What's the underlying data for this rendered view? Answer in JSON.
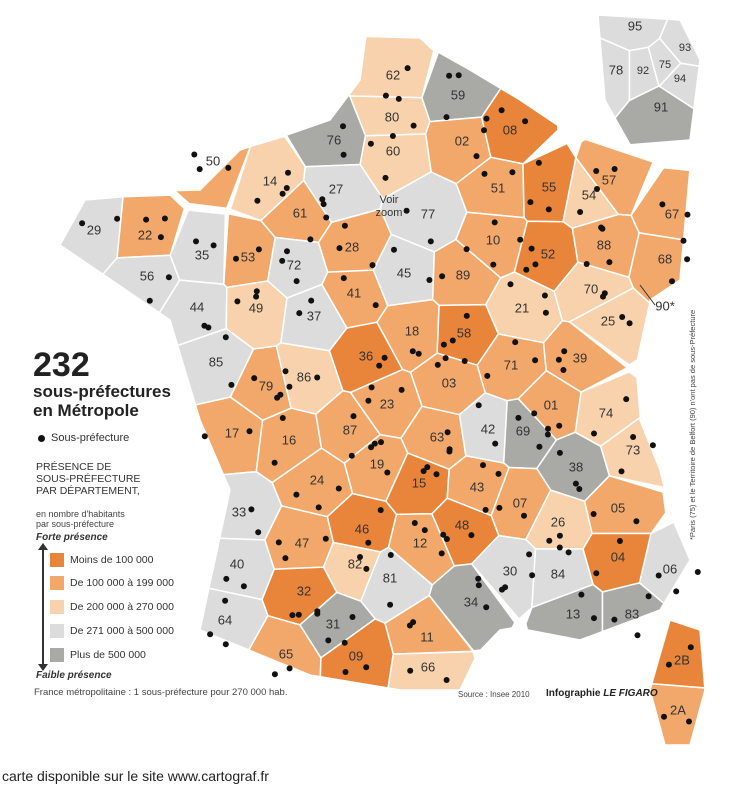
{
  "title": {
    "number": "232",
    "subtitle_line1": "sous-préfectures",
    "subtitle_line2": "en Métropole"
  },
  "dot_legend_label": "Sous-préfecture",
  "legend": {
    "title_lines": [
      "PRÉSENCE DE",
      "SOUS-PRÉFECTURE",
      "PAR DÉPARTEMENT,"
    ],
    "subtitle_lines": [
      "en nombre d'habitants",
      "par sous-préfecture"
    ],
    "strong_label": "Forte présence",
    "weak_label": "Faible présence",
    "items": [
      {
        "label": "Moins de 100 000",
        "color": "#e8853a"
      },
      {
        "label": "De 100 000 à 199 000",
        "color": "#f2a86b"
      },
      {
        "label": "De 200 000 à 270 000",
        "color": "#f8d2ad"
      },
      {
        "label": "De 271 000 à 500 000",
        "color": "#dcdcdc"
      },
      {
        "label": "Plus de 500 000",
        "color": "#a9a9a5"
      }
    ]
  },
  "footnote": "France métropolitaine : 1 sous-préfecture pour 270 000 hab.",
  "source": "Source : Insee 2010",
  "credit_prefix": "Infographie ",
  "credit_paper": "LE FIGARO",
  "side_note": "*Paris (75) et le Territoire de Belfort (90) n'ont pas de sous-Préfecture",
  "zoom_label_line1": "Voir",
  "zoom_label_line2": "zoom",
  "bottom_caption": "carte disponible sur le site www.cartograf.fr",
  "map": {
    "border_color": "#ffffff",
    "dot_color": "#111111",
    "departments": [
      {
        "code": "62",
        "cls": 2
      },
      {
        "code": "59",
        "cls": 4
      },
      {
        "code": "80",
        "cls": 2
      },
      {
        "code": "02",
        "cls": 1
      },
      {
        "code": "08",
        "cls": 0
      },
      {
        "code": "76",
        "cls": 4
      },
      {
        "code": "60",
        "cls": 2
      },
      {
        "code": "50",
        "cls": 1
      },
      {
        "code": "14",
        "cls": 2
      },
      {
        "code": "27",
        "cls": 3
      },
      {
        "code": "77",
        "cls": 3
      },
      {
        "code": "51",
        "cls": 1
      },
      {
        "code": "55",
        "cls": 0
      },
      {
        "code": "54",
        "cls": 2
      },
      {
        "code": "57",
        "cls": 1
      },
      {
        "code": "67",
        "cls": 1
      },
      {
        "code": "29",
        "cls": 3
      },
      {
        "code": "22",
        "cls": 1
      },
      {
        "code": "56",
        "cls": 3
      },
      {
        "code": "35",
        "cls": 3
      },
      {
        "code": "53",
        "cls": 1
      },
      {
        "code": "61",
        "cls": 1
      },
      {
        "code": "72",
        "cls": 3
      },
      {
        "code": "28",
        "cls": 1
      },
      {
        "code": "45",
        "cls": 3
      },
      {
        "code": "10",
        "cls": 1
      },
      {
        "code": "52",
        "cls": 0
      },
      {
        "code": "88",
        "cls": 1
      },
      {
        "code": "68",
        "cls": 1
      },
      {
        "code": "89",
        "cls": 1
      },
      {
        "code": "44",
        "cls": 3
      },
      {
        "code": "49",
        "cls": 2
      },
      {
        "code": "37",
        "cls": 3
      },
      {
        "code": "41",
        "cls": 1
      },
      {
        "code": "21",
        "cls": 2
      },
      {
        "code": "70",
        "cls": 2
      },
      {
        "code": "25",
        "cls": 2
      },
      {
        "code": "18",
        "cls": 1
      },
      {
        "code": "58",
        "cls": 0
      },
      {
        "code": "85",
        "cls": 3
      },
      {
        "code": "79",
        "cls": 1
      },
      {
        "code": "86",
        "cls": 2
      },
      {
        "code": "36",
        "cls": 0
      },
      {
        "code": "71",
        "cls": 1
      },
      {
        "code": "39",
        "cls": 1
      },
      {
        "code": "03",
        "cls": 1
      },
      {
        "code": "17",
        "cls": 1
      },
      {
        "code": "16",
        "cls": 1
      },
      {
        "code": "87",
        "cls": 1
      },
      {
        "code": "23",
        "cls": 1
      },
      {
        "code": "01",
        "cls": 1
      },
      {
        "code": "74",
        "cls": 2
      },
      {
        "code": "63",
        "cls": 1
      },
      {
        "code": "42",
        "cls": 3
      },
      {
        "code": "69",
        "cls": 4
      },
      {
        "code": "73",
        "cls": 2
      },
      {
        "code": "19",
        "cls": 1
      },
      {
        "code": "38",
        "cls": 4
      },
      {
        "code": "24",
        "cls": 1
      },
      {
        "code": "15",
        "cls": 0
      },
      {
        "code": "43",
        "cls": 1
      },
      {
        "code": "33",
        "cls": 3
      },
      {
        "code": "46",
        "cls": 0
      },
      {
        "code": "07",
        "cls": 1
      },
      {
        "code": "26",
        "cls": 2
      },
      {
        "code": "05",
        "cls": 1
      },
      {
        "code": "47",
        "cls": 1
      },
      {
        "code": "12",
        "cls": 1
      },
      {
        "code": "48",
        "cls": 0
      },
      {
        "code": "40",
        "cls": 3
      },
      {
        "code": "82",
        "cls": 2
      },
      {
        "code": "04",
        "cls": 0
      },
      {
        "code": "06",
        "cls": 3
      },
      {
        "code": "81",
        "cls": 3
      },
      {
        "code": "30",
        "cls": 3
      },
      {
        "code": "84",
        "cls": 3
      },
      {
        "code": "32",
        "cls": 0
      },
      {
        "code": "34",
        "cls": 4
      },
      {
        "code": "13",
        "cls": 4
      },
      {
        "code": "83",
        "cls": 4
      },
      {
        "code": "64",
        "cls": 3
      },
      {
        "code": "31",
        "cls": 4
      },
      {
        "code": "11",
        "cls": 1
      },
      {
        "code": "65",
        "cls": 1
      },
      {
        "code": "09",
        "cls": 0
      },
      {
        "code": "66",
        "cls": 2
      },
      {
        "code": "2B",
        "cls": 0
      },
      {
        "code": "2A",
        "cls": 1
      },
      {
        "code": "95",
        "cls": 3
      },
      {
        "code": "78",
        "cls": 3
      },
      {
        "code": "93",
        "cls": 3
      },
      {
        "code": "92",
        "cls": 3
      },
      {
        "code": "75",
        "cls": 3
      },
      {
        "code": "94",
        "cls": 3
      },
      {
        "code": "91",
        "cls": 4
      },
      {
        "code": "90*",
        "cls": -1
      }
    ]
  }
}
